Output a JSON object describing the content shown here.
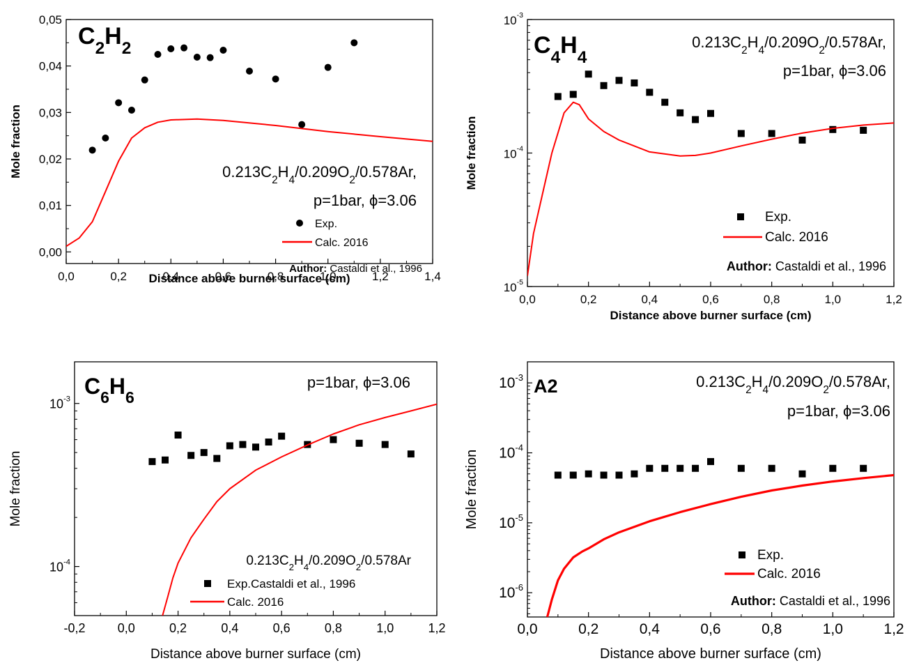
{
  "chart_data": [
    {
      "type": "line",
      "scale": "linear",
      "species": {
        "base": "C",
        "n1": "2",
        "mid": "H",
        "n2": "2"
      },
      "ylabel": "Mole fraction",
      "xlabel": "Distance above burner surface (cm)",
      "xlim": [
        0.0,
        1.4
      ],
      "ylim": [
        -0.0025,
        0.05
      ],
      "xticks": [
        0.0,
        0.2,
        0.4,
        0.6,
        0.8,
        1.0,
        1.2,
        1.4
      ],
      "xtick_labels": [
        "0,0",
        "0,2",
        "0,4",
        "0,6",
        "0,8",
        "1,0",
        "1,2",
        "1,4"
      ],
      "yticks": [
        0.0,
        0.01,
        0.02,
        0.03,
        0.04,
        0.05
      ],
      "ytick_labels": [
        "0,00",
        "0,01",
        "0,02",
        "0,03",
        "0,04",
        "0,05"
      ],
      "condition_lines": [
        "0.213C2H4/0.209O2/0.578Ar,",
        "p=1bar, ϕ=3.06"
      ],
      "legend": {
        "exp": "Exp.",
        "calc": "Calc. 2016",
        "author_bold": "Author:",
        "author_rest": " Castaldi et al., 1996"
      },
      "series": [
        {
          "name": "Exp.",
          "kind": "scatter",
          "marker": "circle",
          "x": [
            0.1,
            0.15,
            0.2,
            0.25,
            0.3,
            0.35,
            0.4,
            0.45,
            0.5,
            0.55,
            0.6,
            0.7,
            0.8,
            0.9,
            1.0,
            1.1
          ],
          "y": [
            0.0219,
            0.0245,
            0.0321,
            0.0305,
            0.037,
            0.0425,
            0.0437,
            0.0439,
            0.0419,
            0.0418,
            0.0434,
            0.0389,
            0.0372,
            0.0274,
            0.0397,
            0.045
          ]
        },
        {
          "name": "Calc. 2016",
          "kind": "line",
          "color": "#ff0000",
          "x": [
            0.0,
            0.05,
            0.1,
            0.15,
            0.2,
            0.25,
            0.3,
            0.35,
            0.4,
            0.5,
            0.6,
            0.8,
            1.0,
            1.2,
            1.4
          ],
          "y": [
            0.0012,
            0.003,
            0.0065,
            0.013,
            0.0195,
            0.0245,
            0.0267,
            0.0279,
            0.0284,
            0.0286,
            0.0283,
            0.0272,
            0.0259,
            0.0248,
            0.0238
          ]
        }
      ]
    },
    {
      "type": "line",
      "scale": "log",
      "species": {
        "base": "C",
        "n1": "4",
        "mid": "H",
        "n2": "4"
      },
      "ylabel": "Mole fraction",
      "xlabel": "Distance above burner surface (cm)",
      "xlim": [
        0.0,
        1.2
      ],
      "ylim": [
        1e-05,
        0.001
      ],
      "xticks": [
        0.0,
        0.2,
        0.4,
        0.6,
        0.8,
        1.0,
        1.2
      ],
      "xtick_labels": [
        "0,0",
        "0,2",
        "0,4",
        "0,6",
        "0,8",
        "1,0",
        "1,2"
      ],
      "ytick_labels": [
        {
          "v": 1e-05,
          "exp": "-5"
        },
        {
          "v": 0.0001,
          "exp": "-4"
        },
        {
          "v": 0.001,
          "exp": "-3"
        }
      ],
      "condition_lines": [
        "0.213C2H4/0.209O2/0.578Ar,",
        "p=1bar, ϕ=3.06"
      ],
      "legend": {
        "exp": "Exp.",
        "calc": "Calc. 2016",
        "author_bold": "Author:",
        "author_rest": " Castaldi et al., 1996"
      },
      "series": [
        {
          "name": "Exp.",
          "kind": "scatter",
          "marker": "square",
          "x": [
            0.1,
            0.15,
            0.2,
            0.25,
            0.3,
            0.35,
            0.4,
            0.45,
            0.5,
            0.55,
            0.6,
            0.7,
            0.8,
            0.9,
            1.0,
            1.1
          ],
          "y": [
            0.000265,
            0.000275,
            0.00039,
            0.00032,
            0.00035,
            0.000335,
            0.000285,
            0.00024,
            0.0002,
            0.000178,
            0.000198,
            0.00014,
            0.00014,
            0.000125,
            0.00015,
            0.000148
          ]
        },
        {
          "name": "Calc. 2016",
          "kind": "line",
          "color": "#ff0000",
          "x": [
            0.0,
            0.02,
            0.05,
            0.08,
            0.12,
            0.15,
            0.17,
            0.2,
            0.25,
            0.3,
            0.4,
            0.5,
            0.55,
            0.6,
            0.7,
            0.8,
            0.9,
            1.0,
            1.1,
            1.2
          ],
          "y": [
            1.2e-05,
            2.5e-05,
            5e-05,
            0.0001,
            0.0002,
            0.00024,
            0.00023,
            0.00018,
            0.000145,
            0.000125,
            0.000102,
            9.5e-05,
            9.6e-05,
            0.0001,
            0.000113,
            0.000127,
            0.000141,
            0.000153,
            0.000162,
            0.000168
          ]
        }
      ]
    },
    {
      "type": "line",
      "scale": "log",
      "species": {
        "base": "C",
        "n1": "6",
        "mid": "H",
        "n2": "6"
      },
      "ylabel": "Mole fraction",
      "xlabel": "Distance above burner surface (cm)",
      "xlim": [
        -0.2,
        1.2
      ],
      "ylim": [
        5e-05,
        0.0018
      ],
      "xticks": [
        -0.2,
        0.0,
        0.2,
        0.4,
        0.6,
        0.8,
        1.0,
        1.2
      ],
      "xtick_labels": [
        "-0,2",
        "0,0",
        "0,2",
        "0,4",
        "0,6",
        "0,8",
        "1,0",
        "1,2"
      ],
      "ytick_labels": [
        {
          "v": 0.0001,
          "exp": "-4"
        },
        {
          "v": 0.001,
          "exp": "-3"
        }
      ],
      "condition_lines": [
        "p=1bar, ϕ=3.06"
      ],
      "legend_condition": "0.213C2H4/0.209O2/0.578Ar",
      "legend": {
        "exp": "Exp.Castaldi et al., 1996",
        "calc": "Calc. 2016"
      },
      "series": [
        {
          "name": "Exp.Castaldi et al., 1996",
          "kind": "scatter",
          "marker": "square",
          "x": [
            0.1,
            0.15,
            0.2,
            0.25,
            0.3,
            0.35,
            0.4,
            0.45,
            0.5,
            0.55,
            0.6,
            0.7,
            0.8,
            0.9,
            1.0,
            1.1
          ],
          "y": [
            0.00044,
            0.00045,
            0.00064,
            0.00048,
            0.0005,
            0.00046,
            0.00055,
            0.00056,
            0.00054,
            0.00058,
            0.00063,
            0.00056,
            0.0006,
            0.00057,
            0.00056,
            0.00049
          ]
        },
        {
          "name": "Calc. 2016",
          "kind": "line",
          "color": "#ff0000",
          "x": [
            0.14,
            0.16,
            0.18,
            0.2,
            0.25,
            0.3,
            0.35,
            0.4,
            0.5,
            0.6,
            0.7,
            0.8,
            0.9,
            1.0,
            1.1,
            1.2
          ],
          "y": [
            5e-05,
            6.5e-05,
            8.5e-05,
            0.000105,
            0.00015,
            0.000195,
            0.00025,
            0.0003,
            0.00039,
            0.00047,
            0.000556,
            0.00065,
            0.00074,
            0.00082,
            0.0009,
            0.00099
          ]
        }
      ]
    },
    {
      "type": "line",
      "scale": "log",
      "species": {
        "base": "A2"
      },
      "ylabel": "Mole fraction",
      "xlabel": "Distance above burner surface (cm)",
      "xlim": [
        0.0,
        1.2
      ],
      "ylim": [
        4.5e-07,
        0.002
      ],
      "xticks": [
        0.0,
        0.2,
        0.4,
        0.6,
        0.8,
        1.0,
        1.2
      ],
      "xtick_labels": [
        "0,0",
        "0,2",
        "0,4",
        "0,6",
        "0,8",
        "1,0",
        "1,2"
      ],
      "ytick_labels": [
        {
          "v": 1e-06,
          "exp": "-6"
        },
        {
          "v": 1e-05,
          "exp": "-5"
        },
        {
          "v": 0.0001,
          "exp": "-4"
        },
        {
          "v": 0.001,
          "exp": "-3"
        }
      ],
      "condition_lines": [
        "0.213C2H4/0.209O2/0.578Ar,",
        "p=1bar, ϕ=3.06"
      ],
      "legend": {
        "exp": "Exp.",
        "calc": "Calc. 2016",
        "author_bold": "Author:",
        "author_rest": " Castaldi et al., 1996"
      },
      "series": [
        {
          "name": "Exp.",
          "kind": "scatter",
          "marker": "square",
          "x": [
            0.1,
            0.15,
            0.2,
            0.25,
            0.3,
            0.35,
            0.4,
            0.45,
            0.5,
            0.55,
            0.6,
            0.7,
            0.8,
            0.9,
            1.0,
            1.1
          ],
          "y": [
            4.8e-05,
            4.8e-05,
            5e-05,
            4.8e-05,
            4.8e-05,
            5e-05,
            6e-05,
            6e-05,
            6e-05,
            6e-05,
            7.5e-05,
            6e-05,
            6e-05,
            5e-05,
            6e-05,
            6e-05
          ]
        },
        {
          "name": "Calc. 2016",
          "kind": "line",
          "color": "#ff0000",
          "x": [
            0.065,
            0.08,
            0.1,
            0.12,
            0.15,
            0.18,
            0.2,
            0.25,
            0.3,
            0.4,
            0.5,
            0.6,
            0.7,
            0.8,
            0.9,
            1.0,
            1.1,
            1.2
          ],
          "y": [
            4.5e-07,
            8e-07,
            1.5e-06,
            2.2e-06,
            3.2e-06,
            3.9e-06,
            4.3e-06,
            5.8e-06,
            7.3e-06,
            1.05e-05,
            1.42e-05,
            1.85e-05,
            2.35e-05,
            2.9e-05,
            3.4e-05,
            3.9e-05,
            4.35e-05,
            4.8e-05
          ]
        }
      ]
    }
  ]
}
